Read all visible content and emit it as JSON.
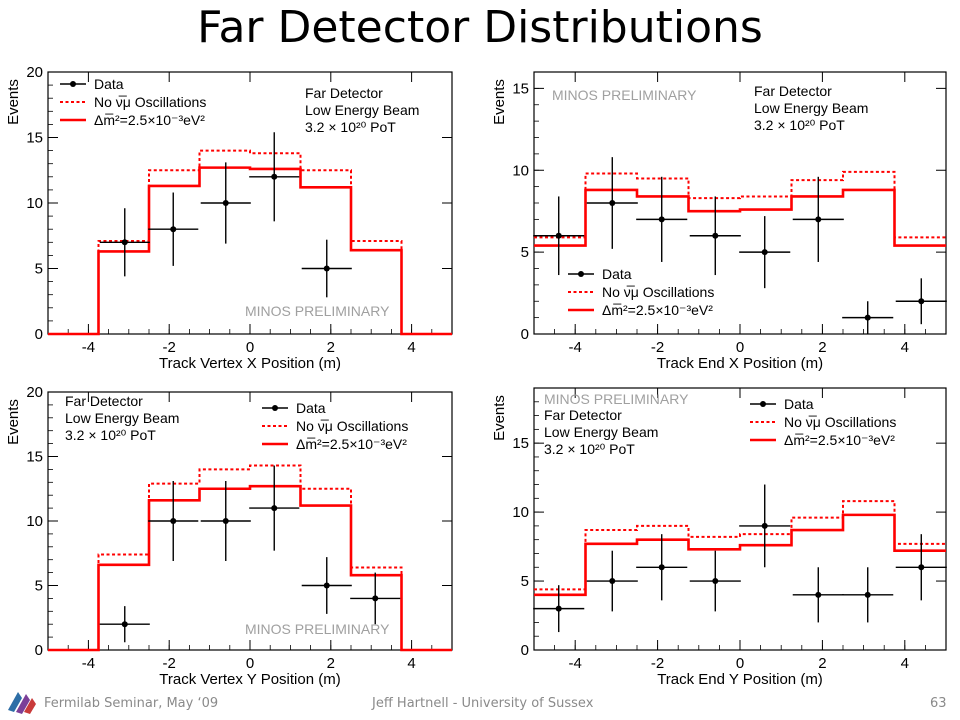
{
  "slide": {
    "title": "Far Detector Distributions",
    "footer_left": "Fermilab Seminar, May ‘09",
    "footer_center": "Jeff Hartnell - University of Sussex",
    "page_number": "63"
  },
  "colors": {
    "data": "#000000",
    "no_osc": "#ff0000",
    "osc": "#ff0000",
    "prelim": "#a0a0a0"
  },
  "chart_data": [
    {
      "type": "histogram",
      "xlabel": "Track Vertex X Position (m)",
      "ylabel": "Events",
      "xlim": [
        -5,
        5
      ],
      "ylim": [
        0,
        20
      ],
      "xticks": [
        -4,
        -2,
        0,
        2,
        4
      ],
      "yticks": [
        0,
        5,
        10,
        15,
        20
      ],
      "bin_edges": [
        -5,
        -3.75,
        -2.5,
        -1.25,
        0,
        1.25,
        2.5,
        3.75,
        5
      ],
      "series": [
        {
          "name": "No ν̅μ Oscillations",
          "style": "dotted",
          "values": [
            0,
            7.1,
            12.5,
            14.0,
            13.8,
            12.5,
            7.1,
            0
          ]
        },
        {
          "name": "Δm̅²=2.5×10⁻³eV²",
          "style": "solid",
          "values": [
            0,
            6.3,
            11.3,
            12.7,
            12.6,
            11.2,
            6.4,
            0
          ]
        }
      ],
      "points": [
        {
          "x": -3.1,
          "y": 7,
          "yerr": 2.6,
          "xerr": 0.62
        },
        {
          "x": -1.9,
          "y": 8,
          "yerr": 2.8,
          "xerr": 0.62
        },
        {
          "x": -0.6,
          "y": 10,
          "yerr": 3.1,
          "xerr": 0.62
        },
        {
          "x": 0.6,
          "y": 12,
          "yerr": 3.4,
          "xerr": 0.62
        },
        {
          "x": 1.9,
          "y": 5,
          "yerr": 2.2,
          "xerr": 0.62
        }
      ],
      "legend_data": "Data",
      "info": [
        "Far Detector",
        "Low Energy Beam",
        "3.2 × 10²⁰ PoT"
      ],
      "preliminary": "MINOS PRELIMINARY"
    },
    {
      "type": "histogram",
      "xlabel": "Track End X Position (m)",
      "ylabel": "Events",
      "xlim": [
        -5,
        5
      ],
      "ylim": [
        0,
        16
      ],
      "xticks": [
        -4,
        -2,
        0,
        2,
        4
      ],
      "yticks": [
        0,
        5,
        10,
        15
      ],
      "bin_edges": [
        -5,
        -3.75,
        -2.5,
        -1.25,
        0,
        1.25,
        2.5,
        3.75,
        5
      ],
      "series": [
        {
          "name": "No ν̅μ Oscillations",
          "style": "dotted",
          "values": [
            5.9,
            9.8,
            9.5,
            8.3,
            8.4,
            9.4,
            9.9,
            5.9
          ]
        },
        {
          "name": "Δm̅²=2.5×10⁻³eV²",
          "style": "solid",
          "values": [
            5.4,
            8.8,
            8.4,
            7.5,
            7.6,
            8.4,
            8.8,
            5.4
          ]
        }
      ],
      "points": [
        {
          "x": -4.4,
          "y": 6,
          "yerr": 2.4,
          "xerr": 0.62
        },
        {
          "x": -3.1,
          "y": 8,
          "yerr": 2.8,
          "xerr": 0.62
        },
        {
          "x": -1.9,
          "y": 7,
          "yerr": 2.6,
          "xerr": 0.62
        },
        {
          "x": -0.6,
          "y": 6,
          "yerr": 2.4,
          "xerr": 0.62
        },
        {
          "x": 0.6,
          "y": 5,
          "yerr": 2.2,
          "xerr": 0.62
        },
        {
          "x": 1.9,
          "y": 7,
          "yerr": 2.6,
          "xerr": 0.62
        },
        {
          "x": 3.1,
          "y": 1,
          "yerr": 1.0,
          "xerr": 0.62
        },
        {
          "x": 4.4,
          "y": 2,
          "yerr": 1.4,
          "xerr": 0.62
        }
      ],
      "legend_data": "Data",
      "info": [
        "Far Detector",
        "Low Energy Beam",
        "3.2 × 10²⁰ PoT"
      ],
      "preliminary": "MINOS PRELIMINARY"
    },
    {
      "type": "histogram",
      "xlabel": "Track Vertex Y Position (m)",
      "ylabel": "Events",
      "xlim": [
        -5,
        5
      ],
      "ylim": [
        0,
        20
      ],
      "xticks": [
        -4,
        -2,
        0,
        2,
        4
      ],
      "yticks": [
        0,
        5,
        10,
        15,
        20
      ],
      "bin_edges": [
        -5,
        -3.75,
        -2.5,
        -1.25,
        0,
        1.25,
        2.5,
        3.75,
        5
      ],
      "series": [
        {
          "name": "No ν̅μ Oscillations",
          "style": "dotted",
          "values": [
            0,
            7.4,
            12.9,
            14.0,
            14.3,
            12.5,
            6.4,
            0
          ]
        },
        {
          "name": "Δm̅²=2.5×10⁻³eV²",
          "style": "solid",
          "values": [
            0,
            6.6,
            11.6,
            12.5,
            12.7,
            11.2,
            5.8,
            0
          ]
        }
      ],
      "points": [
        {
          "x": -3.1,
          "y": 2,
          "yerr": 1.4,
          "xerr": 0.62
        },
        {
          "x": -1.9,
          "y": 10,
          "yerr": 3.1,
          "xerr": 0.62
        },
        {
          "x": -0.6,
          "y": 10,
          "yerr": 3.1,
          "xerr": 0.62
        },
        {
          "x": 0.6,
          "y": 11,
          "yerr": 3.3,
          "xerr": 0.62
        },
        {
          "x": 1.9,
          "y": 5,
          "yerr": 2.2,
          "xerr": 0.62
        },
        {
          "x": 3.1,
          "y": 4,
          "yerr": 2.0,
          "xerr": 0.62
        }
      ],
      "legend_data": "Data",
      "info": [
        "Far Detector",
        "Low Energy Beam",
        "3.2 × 10²⁰ PoT"
      ],
      "preliminary": "MINOS PRELIMINARY"
    },
    {
      "type": "histogram",
      "xlabel": "Track End Y Position (m)",
      "ylabel": "Events",
      "xlim": [
        -5,
        5
      ],
      "ylim": [
        0,
        19
      ],
      "xticks": [
        -4,
        -2,
        0,
        2,
        4
      ],
      "yticks": [
        0,
        5,
        10,
        15
      ],
      "bin_edges": [
        -5,
        -3.75,
        -2.5,
        -1.25,
        0,
        1.25,
        2.5,
        3.75,
        5
      ],
      "series": [
        {
          "name": "No ν̅μ Oscillations",
          "style": "dotted",
          "values": [
            4.4,
            8.7,
            9.0,
            8.2,
            8.4,
            9.6,
            10.8,
            7.7
          ]
        },
        {
          "name": "Δm̅²=2.5×10⁻³eV²",
          "style": "solid",
          "values": [
            4.0,
            7.7,
            8.0,
            7.3,
            7.6,
            8.7,
            9.8,
            7.2
          ]
        }
      ],
      "points": [
        {
          "x": -4.4,
          "y": 3,
          "yerr": 1.7,
          "xerr": 0.62
        },
        {
          "x": -3.1,
          "y": 5,
          "yerr": 2.2,
          "xerr": 0.62
        },
        {
          "x": -1.9,
          "y": 6,
          "yerr": 2.4,
          "xerr": 0.62
        },
        {
          "x": -0.6,
          "y": 5,
          "yerr": 2.2,
          "xerr": 0.62
        },
        {
          "x": 0.6,
          "y": 9,
          "yerr": 3.0,
          "xerr": 0.62
        },
        {
          "x": 1.9,
          "y": 4,
          "yerr": 2.0,
          "xerr": 0.62
        },
        {
          "x": 3.1,
          "y": 4,
          "yerr": 2.0,
          "xerr": 0.62
        },
        {
          "x": 4.4,
          "y": 6,
          "yerr": 2.4,
          "xerr": 0.62
        }
      ],
      "legend_data": "Data",
      "info": [
        "Far Detector",
        "Low Energy Beam",
        "3.2 × 10²⁰ PoT"
      ],
      "preliminary": "MINOS PRELIMINARY"
    }
  ]
}
